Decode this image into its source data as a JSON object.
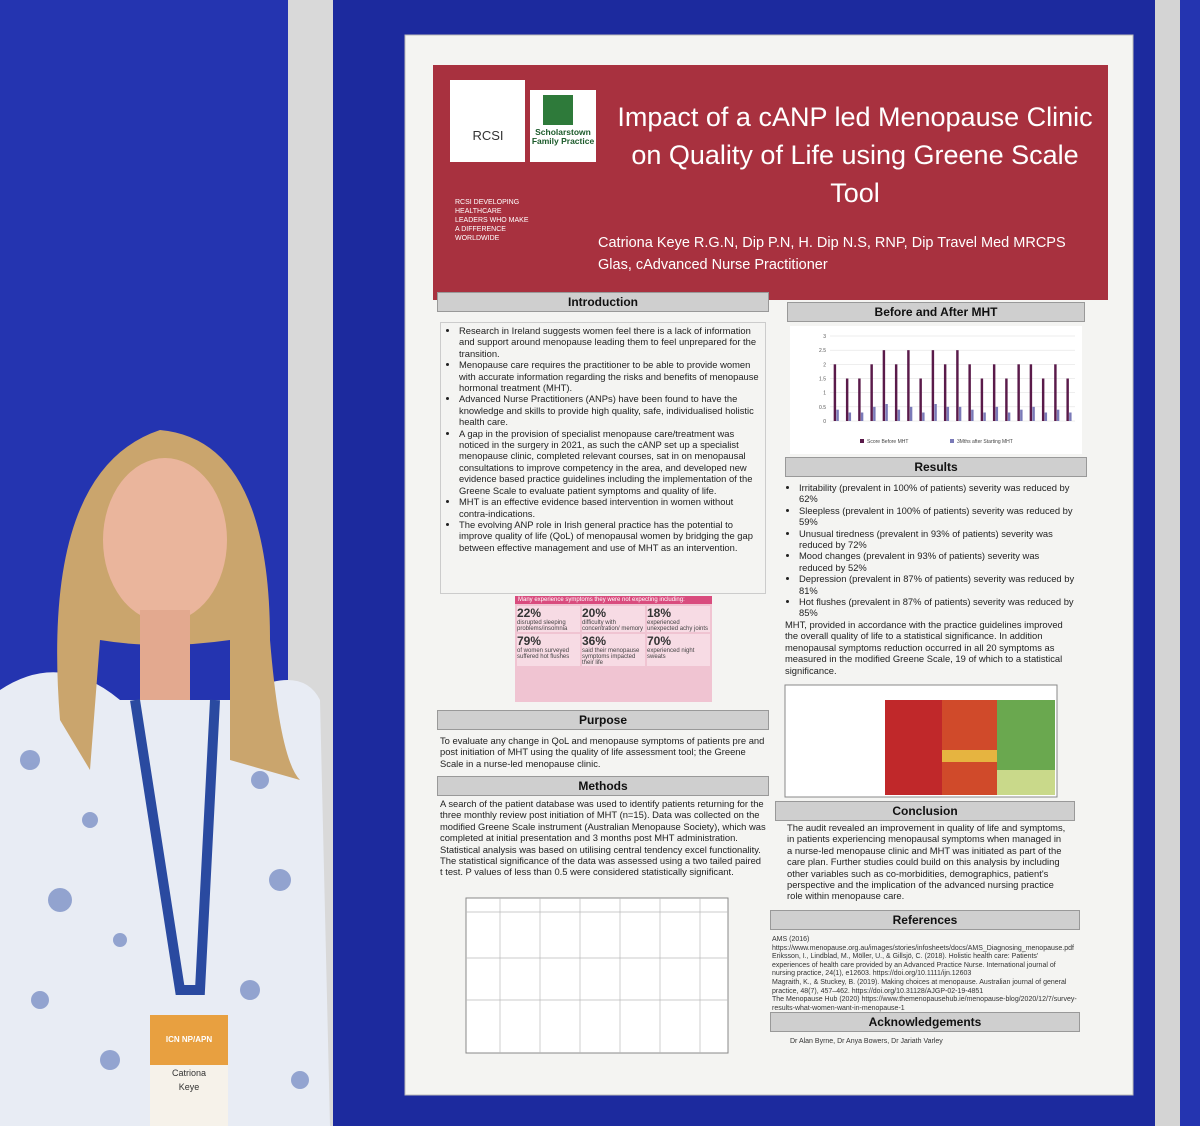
{
  "header": {
    "logos": [
      "RCSI",
      "Scholarstown Family Practice"
    ],
    "tagline": "RCSI DEVELOPING HEALTHCARE LEADERS WHO MAKE A DIFFERENCE WORLDWIDE",
    "title": "Impact of a cANP led Menopause Clinic on Quality of Life using Greene Scale Tool",
    "authors": "Catriona Keye R.G.N, Dip P.N, H. Dip N.S, RNP, Dip Travel Med MRCPS Glas, cAdvanced Nurse Practitioner"
  },
  "introduction": {
    "heading": "Introduction",
    "bullets": [
      "Research in Ireland suggests women feel there is a lack of information and support around menopause leading them to feel unprepared for the transition.",
      "Menopause care requires the practitioner to be able to provide women with accurate information regarding the risks and benefits of menopause hormonal treatment (MHT).",
      "Advanced Nurse Practitioners (ANPs) have been found to have the knowledge and skills to provide high quality, safe, individualised holistic health care.",
      "A gap in the provision of specialist menopause care/treatment was noticed in the surgery in 2021, as such the cANP set up a specialist menopause clinic, completed relevant courses, sat in on menopausal consultations to improve competency in the area, and developed new evidence based practice guidelines including the implementation of the Greene Scale to evaluate patient symptoms and quality of life.",
      "MHT is an effective evidence based intervention in women without contra-indications.",
      "The evolving ANP role in Irish general practice has the potential to improve quality of life (QoL) of menopausal women by bridging the gap between effective management and use of MHT as an intervention."
    ],
    "infographic": {
      "title": "Many experience symptoms they were not expecting including:",
      "stats": [
        {
          "value": "22%",
          "label": "disrupted sleeping problems/insomnia"
        },
        {
          "value": "20%",
          "label": "difficulty with concentration/ memory"
        },
        {
          "value": "18%",
          "label": "experienced unexpected achy joints"
        },
        {
          "value": "79%",
          "label": "of women surveyed suffered hot flushes"
        },
        {
          "value": "36%",
          "label": "said their menopause symptoms impacted their life"
        },
        {
          "value": "70%",
          "label": "experienced night sweats"
        }
      ]
    }
  },
  "purpose": {
    "heading": "Purpose",
    "text": "To evaluate any change in QoL and menopause symptoms of patients pre and post initiation of MHT using the quality of life assessment tool; the Greene Scale in a nurse-led menopause clinic."
  },
  "methods": {
    "heading": "Methods",
    "text": "A search of the patient database was used to identify patients returning for the three monthly review post initiation of MHT (n=15). Data was collected on the modified Greene Scale instrument (Australian Menopause Society), which was completed at initial presentation and 3 months post MHT administration. Statistical analysis was based on utilising central tendency excel functionality. The statistical significance of the data was assessed using a two tailed paired t test. P values of less than 0.5 were considered statistically significant."
  },
  "before_after": {
    "heading": "Before and After MHT",
    "chart": {
      "type": "bar",
      "ylim": [
        0,
        3
      ],
      "yticks": [
        0,
        0.5,
        1,
        1.5,
        2,
        2.5,
        3
      ],
      "series": [
        {
          "name": "Score Before MHT",
          "color": "#5a1a4a",
          "values": [
            2,
            1.5,
            1.5,
            2,
            2.5,
            2,
            2.5,
            1.5,
            2.5,
            2,
            2.5,
            2,
            1.5,
            2,
            1.5,
            2,
            2,
            1.5,
            2,
            1.5
          ]
        },
        {
          "name": "3Mths after Starting MHT",
          "color": "#7a7ab8",
          "values": [
            0.4,
            0.3,
            0.3,
            0.5,
            0.6,
            0.4,
            0.5,
            0.3,
            0.6,
            0.5,
            0.5,
            0.4,
            0.3,
            0.5,
            0.3,
            0.4,
            0.5,
            0.3,
            0.4,
            0.3
          ]
        }
      ]
    }
  },
  "results": {
    "heading": "Results",
    "bullets": [
      "Irritability (prevalent in 100% of patients) severity was reduced by 62%",
      "Sleepless (prevalent in 100% of patients) severity was reduced by 59%",
      "Unusual tiredness (prevalent in 93% of patients) severity was reduced by 72%",
      "Mood changes (prevalent in 93% of patients) severity was reduced by 52%",
      "Depression (prevalent in 87% of patients) severity was reduced by 81%",
      "Hot flushes (prevalent in 87% of patients) severity was reduced by 85%"
    ],
    "text": "MHT, provided in accordance with the practice guidelines improved the overall quality of life to a statistical significance. In addition menopausal symptoms reduction occurred in all 20 symptoms as measured in the modified Greene Scale, 19 of which to a statistical significance."
  },
  "conclusion": {
    "heading": "Conclusion",
    "text": "The audit revealed an improvement in quality of life and symptoms, in patients experiencing menopausal symptoms when managed in a nurse-led menopause clinic and MHT was initiated as part of the care plan. Further studies could build on this analysis by including other variables such as co-morbidities, demographics, patient's perspective and the implication of the advanced nursing practice role within menopause care."
  },
  "references": {
    "heading": "References",
    "items": [
      "AMS (2016) https://www.menopause.org.au/images/stories/infosheets/docs/AMS_Diagnosing_menopause.pdf",
      "Eriksson, I., Lindblad, M., Möller, U., & Gillsjö, C. (2018). Holistic health care: Patients' experiences of health care provided by an Advanced Practice Nurse. International journal of nursing practice, 24(1), e12603. https://doi.org/10.1111/ijn.12603",
      "Magraith, K., & Stuckey, B. (2019). Making choices at menopause. Australian journal of general practice, 48(7), 457–462. https://doi.org/10.31128/AJGP-02-19-4851",
      "The Menopause Hub (2020) https://www.themenopausehub.ie/menopause-blog/2020/12/7/survey-results-what-women-want-in-menopause-1"
    ]
  },
  "acknowledgements": {
    "heading": "Acknowledgements",
    "text": "Dr Alan Byrne, Dr Anya Bowers, Dr Jariath Varley"
  },
  "badge": {
    "first_name": "Catriona",
    "last_name": "Keye",
    "event": "ICN NP/APN"
  }
}
